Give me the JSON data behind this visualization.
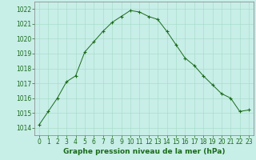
{
  "x": [
    0,
    1,
    2,
    3,
    4,
    5,
    6,
    7,
    8,
    9,
    10,
    11,
    12,
    13,
    14,
    15,
    16,
    17,
    18,
    19,
    20,
    21,
    22,
    23
  ],
  "y": [
    1014.2,
    1015.1,
    1016.0,
    1017.1,
    1017.5,
    1019.1,
    1019.8,
    1020.5,
    1021.1,
    1021.5,
    1021.9,
    1021.8,
    1021.5,
    1021.3,
    1020.5,
    1019.6,
    1018.7,
    1018.2,
    1017.5,
    1016.9,
    1016.3,
    1016.0,
    1015.1,
    1015.2
  ],
  "line_color": "#1a6b1a",
  "marker": "+",
  "bg_color": "#c8eee8",
  "grid_color": "#aaddcc",
  "xlabel": "Graphe pression niveau de la mer (hPa)",
  "xlabel_color": "#1a6b1a",
  "tick_color": "#1a6b1a",
  "ylim": [
    1013.5,
    1022.5
  ],
  "yticks": [
    1014,
    1015,
    1016,
    1017,
    1018,
    1019,
    1020,
    1021,
    1022
  ],
  "xticks": [
    0,
    1,
    2,
    3,
    4,
    5,
    6,
    7,
    8,
    9,
    10,
    11,
    12,
    13,
    14,
    15,
    16,
    17,
    18,
    19,
    20,
    21,
    22,
    23
  ],
  "axis_color": "#808080",
  "tick_fontsize": 5.5,
  "xlabel_fontsize": 6.5,
  "line_width": 0.7,
  "marker_size": 3.5
}
